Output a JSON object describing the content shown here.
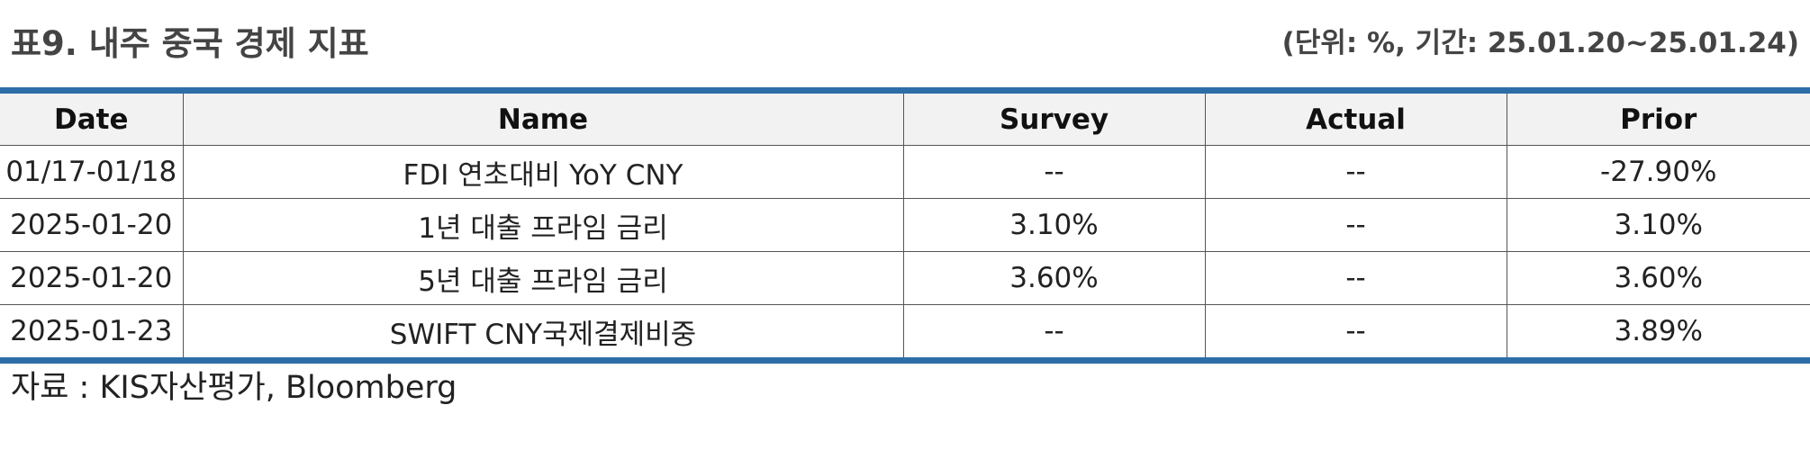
{
  "header": {
    "title": "표9. 내주 중국 경제 지표",
    "unit_note": "(단위: %, 기간: 25.01.20~25.01.24)"
  },
  "table": {
    "columns": [
      "Date",
      "Name",
      "Survey",
      "Actual",
      "Prior"
    ],
    "rows": [
      [
        "01/17-01/18",
        "FDI 연초대비 YoY CNY",
        "--",
        "--",
        "-27.90%"
      ],
      [
        "2025-01-20",
        "1년 대출 프라임 금리",
        "3.10%",
        "--",
        "3.10%"
      ],
      [
        "2025-01-20",
        "5년 대출 프라임 금리",
        "3.60%",
        "--",
        "3.60%"
      ],
      [
        "2025-01-23",
        "SWIFT CNY국제결제비중",
        "--",
        "--",
        "3.89%"
      ]
    ]
  },
  "footer": {
    "source": "자료 : KIS자산평가, Bloomberg"
  },
  "colors": {
    "rule": "#2e6ea8",
    "header_bg": "#f2f2f2"
  }
}
